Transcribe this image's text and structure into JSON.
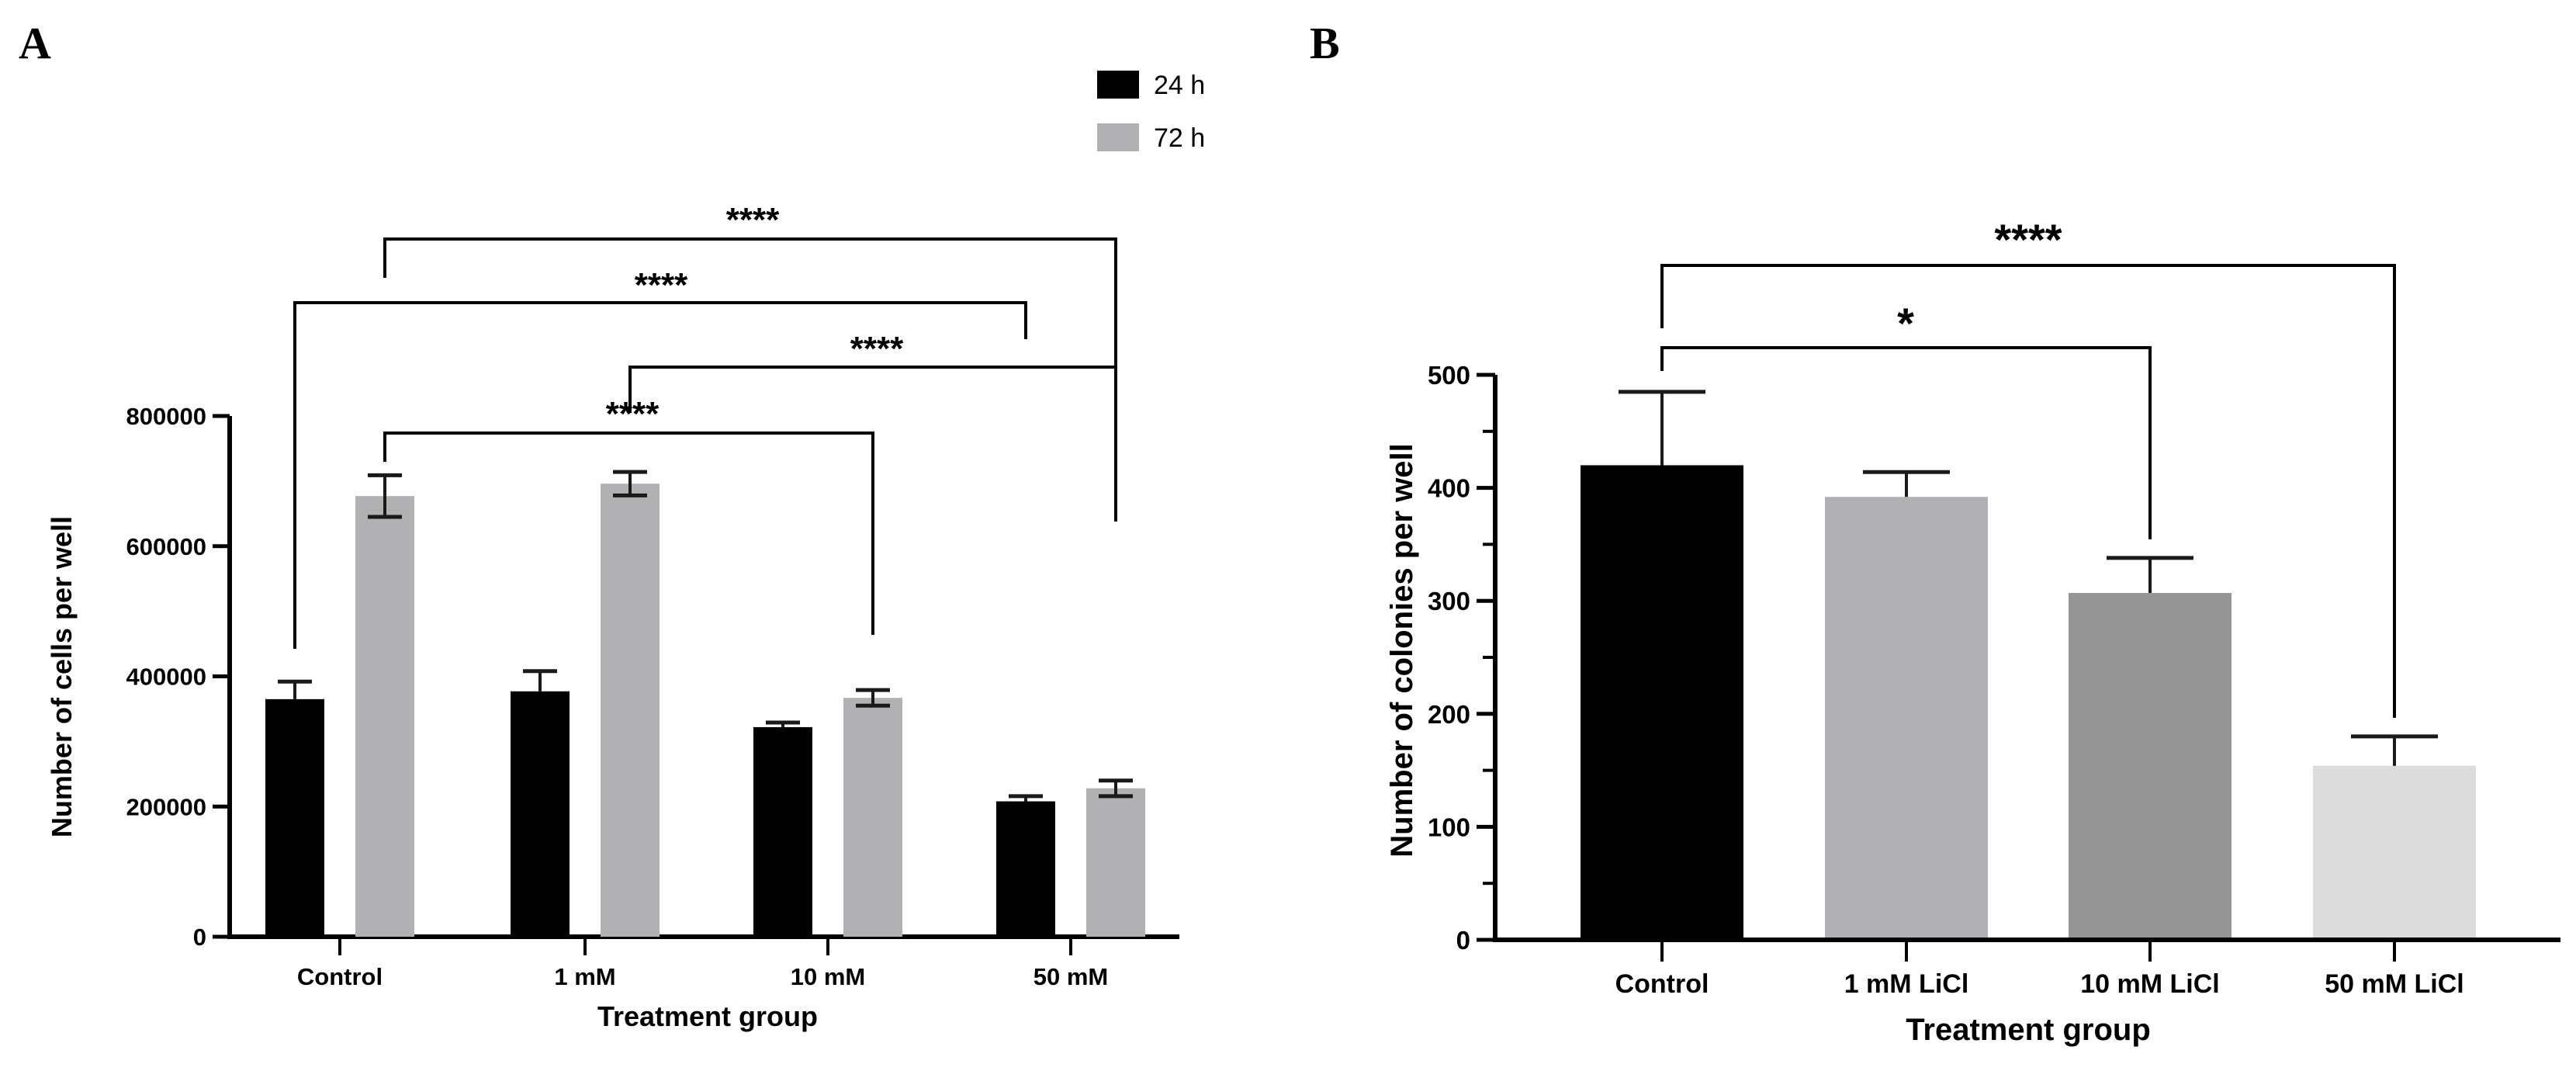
{
  "panels": {
    "a": {
      "label": "A"
    },
    "b": {
      "label": "B"
    }
  },
  "chart_data": [
    {
      "panel": "A",
      "type": "bar",
      "title": "",
      "xlabel": "Treatment group",
      "ylabel": "Number of cells per well",
      "ylim": [
        0,
        800000
      ],
      "yticks": [
        0,
        200000,
        400000,
        600000,
        800000
      ],
      "ytick_labels": [
        "0",
        "200000",
        "400000",
        "600000",
        "800000"
      ],
      "grid": false,
      "legend_position": "top-right",
      "categories": [
        "Control",
        "1 mM",
        "10 mM",
        "50 mM"
      ],
      "series": [
        {
          "name": "24 h",
          "color": "#000000",
          "values": [
            365000,
            377000,
            322000,
            208000
          ],
          "error": [
            27000,
            31000,
            7000,
            8000
          ]
        },
        {
          "name": "72 h",
          "color": "#b1b1b3",
          "values": [
            677000,
            696000,
            367000,
            228000
          ],
          "error": [
            32000,
            18000,
            12000,
            12000
          ]
        }
      ],
      "annotations": [
        {
          "from": "Control 72 h",
          "to": "50 mM 72 h",
          "text": "****"
        },
        {
          "from": "Control 24 h",
          "to": "50 mM 24 h",
          "text": "****"
        },
        {
          "from": "1 mM 72 h",
          "to": "50 mM 72 h",
          "text": "****"
        },
        {
          "from": "Control 72 h",
          "to": "10 mM 72 h",
          "text": "****"
        }
      ]
    },
    {
      "panel": "B",
      "type": "bar",
      "title": "",
      "xlabel": "Treatment group",
      "ylabel": "Number of colonies per well",
      "ylim": [
        0,
        500
      ],
      "yticks": [
        0,
        100,
        200,
        300,
        400,
        500
      ],
      "ytick_labels": [
        "0",
        "100",
        "200",
        "300",
        "400",
        "500"
      ],
      "minor_yticks": [
        50,
        150,
        250,
        350,
        450
      ],
      "grid": false,
      "categories": [
        "Control",
        "1 mM LiCl",
        "10 mM LiCl",
        "50 mM LiCl"
      ],
      "values": [
        420,
        392,
        307,
        154
      ],
      "error": [
        65,
        22,
        31,
        26
      ],
      "colors": [
        "#000000",
        "#b1b1b3",
        "#959595",
        "#dcdcdc"
      ],
      "annotations": [
        {
          "from": "Control",
          "to": "50 mM LiCl",
          "text": "****"
        },
        {
          "from": "Control",
          "to": "10 mM LiCl",
          "text": "*"
        }
      ]
    }
  ]
}
